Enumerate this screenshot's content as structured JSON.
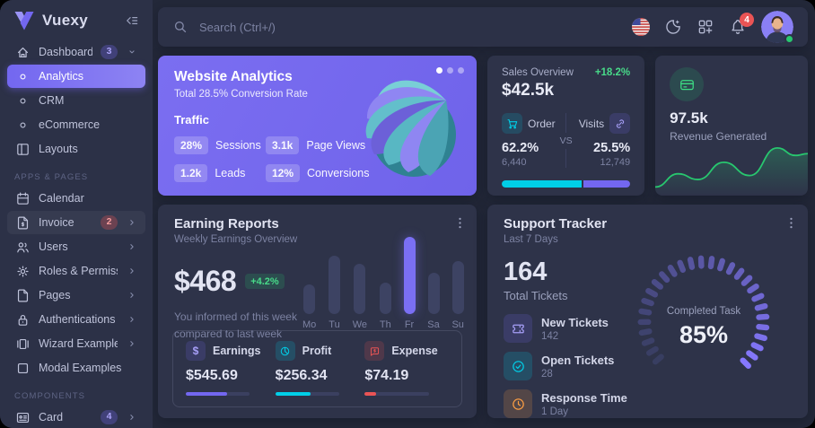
{
  "colors": {
    "primary": "#7367f0",
    "cyan": "#00cfe8",
    "green": "#28c76f",
    "red": "#ea5455",
    "orange": "#ff9f43"
  },
  "sidebar": {
    "logo_text": "Vuexy",
    "items": [
      {
        "type": "item",
        "icon": "home-icon",
        "label": "Dashboard",
        "badge": "3",
        "badge_style": "primary",
        "chevron": "down"
      },
      {
        "type": "subitem",
        "icon": "circle-icon",
        "label": "Analytics",
        "active": true
      },
      {
        "type": "subitem",
        "icon": "circle-icon",
        "label": "CRM"
      },
      {
        "type": "subitem",
        "icon": "circle-icon",
        "label": "eCommerce"
      },
      {
        "type": "item",
        "icon": "layout-icon",
        "label": "Layouts"
      },
      {
        "type": "section",
        "label": "APPS & PAGES"
      },
      {
        "type": "item",
        "icon": "calendar-icon",
        "label": "Calendar"
      },
      {
        "type": "item",
        "icon": "invoice-icon",
        "label": "Invoice",
        "badge": "2",
        "badge_style": "danger",
        "chevron": "right",
        "highlighted": true
      },
      {
        "type": "item",
        "icon": "users-icon",
        "label": "Users",
        "chevron": "right"
      },
      {
        "type": "item",
        "icon": "gear-icon",
        "label": "Roles & Permissions",
        "chevron": "right"
      },
      {
        "type": "item",
        "icon": "file-icon",
        "label": "Pages",
        "chevron": "right"
      },
      {
        "type": "item",
        "icon": "lock-icon",
        "label": "Authentications",
        "chevron": "right"
      },
      {
        "type": "item",
        "icon": "wizard-icon",
        "label": "Wizard Examples",
        "chevron": "right"
      },
      {
        "type": "item",
        "icon": "square-icon",
        "label": "Modal Examples"
      },
      {
        "type": "section",
        "label": "COMPONENTS"
      },
      {
        "type": "item",
        "icon": "card-icon",
        "label": "Card",
        "badge": "4",
        "badge_style": "primary",
        "chevron": "right"
      }
    ]
  },
  "header": {
    "search_placeholder": "Search (Ctrl+/)",
    "notification_count": "4"
  },
  "website_analytics": {
    "title": "Website Analytics",
    "subtitle": "Total 28.5% Conversion Rate",
    "section_label": "Traffic",
    "stats": [
      {
        "value": "28%",
        "label": "Sessions"
      },
      {
        "value": "3.1k",
        "label": "Page Views"
      },
      {
        "value": "1.2k",
        "label": "Leads"
      },
      {
        "value": "12%",
        "label": "Conversions"
      }
    ],
    "carousel_dots": 3,
    "active_dot": 0
  },
  "sales_overview": {
    "title": "Sales Overview",
    "change": "+18.2%",
    "total": "$42.5k",
    "order": {
      "label": "Order",
      "percent": "62.2%",
      "count": "6,440"
    },
    "versus_label": "VS",
    "visits": {
      "label": "Visits",
      "percent": "25.5%",
      "count": "12,749"
    },
    "progress_split_pct": 62
  },
  "revenue_generated": {
    "value": "97.5k",
    "label": "Revenue Generated",
    "chart_data": {
      "type": "line",
      "series_name": "Revenue",
      "color": "#28c76f",
      "grid": false,
      "axes_visible": false,
      "x_pct": [
        0,
        15,
        28,
        45,
        62,
        80,
        92,
        100
      ],
      "y_pct": [
        85,
        62,
        72,
        42,
        65,
        17,
        30,
        27
      ]
    }
  },
  "earning_reports": {
    "title": "Earning Reports",
    "subtitle": "Weekly Earnings Overview",
    "amount": "$468",
    "change": "+4.2%",
    "note_line1": "You informed of this week",
    "note_line2": "compared to last week",
    "chart_data": {
      "type": "bar",
      "categories": [
        "Mo",
        "Tu",
        "We",
        "Th",
        "Fr",
        "Sa",
        "Su"
      ],
      "values": [
        38,
        75,
        65,
        41,
        100,
        53,
        69
      ],
      "unit": "% of max bar",
      "highlight_index": 4,
      "bar_color": "#3d4363",
      "highlight_color": "#7a6ff4"
    },
    "stats": [
      {
        "icon": "dollar-icon",
        "color": "#7367f0",
        "label": "Earnings",
        "value": "$545.69",
        "progress_pct": 65
      },
      {
        "icon": "pie-icon",
        "color": "#00cfe8",
        "label": "Profit",
        "value": "$256.34",
        "progress_pct": 55
      },
      {
        "icon": "expense-icon",
        "color": "#ea5455",
        "label": "Expense",
        "value": "$74.19",
        "progress_pct": 18
      }
    ]
  },
  "support_tracker": {
    "title": "Support Tracker",
    "subtitle": "Last 7 Days",
    "total": "164",
    "total_label": "Total Tickets",
    "items": [
      {
        "icon": "ticket-icon",
        "color": "#7367f0",
        "label": "New Tickets",
        "value": "142"
      },
      {
        "icon": "check-circle-icon",
        "color": "#00cfe8",
        "label": "Open Tickets",
        "value": "28"
      },
      {
        "icon": "clock-icon",
        "color": "#ff9f43",
        "label": "Response Time",
        "value": "1 Day"
      }
    ],
    "chart_data": {
      "type": "radial-gauge",
      "label": "Completed Task",
      "value": 85,
      "max": 100,
      "value_display": "85%",
      "tick_count": 28,
      "start_color": "#383e61",
      "end_color": "#8678ff"
    }
  }
}
